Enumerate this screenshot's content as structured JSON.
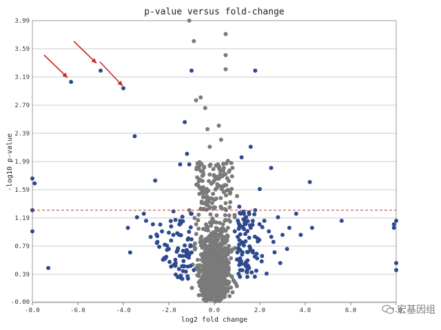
{
  "chart_data": {
    "type": "scatter",
    "title": "p-value versus fold-change",
    "xlabel": "log2 fold change",
    "ylabel": "-log10 p-value",
    "xlim": [
      -8,
      8
    ],
    "ylim": [
      -0.01,
      3.99
    ],
    "x_ticks": [
      "-8.0",
      "-6.0",
      "-4.0",
      "-2.0",
      "0.0",
      "2.0",
      "4.0",
      "6.0",
      "8.0"
    ],
    "y_ticks": [
      "-0.00",
      "0.39",
      "0.79",
      "1.19",
      "1.59",
      "1.99",
      "2.39",
      "2.79",
      "3.19",
      "3.59",
      "3.99"
    ],
    "grid": "horizontal",
    "threshold_line": {
      "y": 1.3,
      "style": "dashed",
      "color": "#c03030"
    },
    "colors": {
      "significant": "#2e4a8f",
      "not_significant": "#7a7a7a",
      "arrows": "#cc2222"
    },
    "series": [
      {
        "color": "#2e4a8f",
        "points": [
          [
            -6.3,
            3.12
          ],
          [
            -5.0,
            3.28
          ],
          [
            -4.0,
            3.03
          ],
          [
            -1.0,
            3.28
          ],
          [
            -3.5,
            2.35
          ],
          [
            -1.3,
            2.55
          ],
          [
            1.8,
            3.28
          ],
          [
            -8.0,
            1.75
          ],
          [
            -7.9,
            1.68
          ],
          [
            -8.0,
            1.3
          ],
          [
            -8.0,
            1.0
          ],
          [
            -7.3,
            0.48
          ],
          [
            -3.8,
            1.05
          ],
          [
            -3.7,
            0.7
          ],
          [
            -3.4,
            1.2
          ],
          [
            -3.1,
            1.25
          ],
          [
            -3.0,
            1.15
          ],
          [
            -2.8,
            0.92
          ],
          [
            -2.7,
            1.1
          ],
          [
            -2.6,
            1.72
          ],
          [
            -2.5,
            0.85
          ],
          [
            -2.3,
            1.0
          ],
          [
            -2.2,
            0.62
          ],
          [
            -2.0,
            0.75
          ],
          [
            -1.9,
            0.5
          ],
          [
            -1.8,
            0.95
          ],
          [
            -1.7,
            0.55
          ],
          [
            -1.6,
            0.35
          ],
          [
            -1.5,
            1.15
          ],
          [
            -1.4,
            0.65
          ],
          [
            -1.3,
            0.8
          ],
          [
            -1.2,
            2.1
          ],
          [
            -1.1,
            1.95
          ],
          [
            -1.0,
            0.7
          ],
          [
            -1.0,
            1.25
          ],
          [
            -0.9,
            0.45
          ],
          [
            0.9,
            1.0
          ],
          [
            1.0,
            0.6
          ],
          [
            1.1,
            1.35
          ],
          [
            1.2,
            2.05
          ],
          [
            1.3,
            0.8
          ],
          [
            1.4,
            1.2
          ],
          [
            1.5,
            0.5
          ],
          [
            1.6,
            1.05
          ],
          [
            1.7,
            0.7
          ],
          [
            1.8,
            1.3
          ],
          [
            1.9,
            0.9
          ],
          [
            2.0,
            1.6
          ],
          [
            2.1,
            0.65
          ],
          [
            2.2,
            1.15
          ],
          [
            2.3,
            0.4
          ],
          [
            2.4,
            1.0
          ],
          [
            2.5,
            1.9
          ],
          [
            2.6,
            0.85
          ],
          [
            2.8,
            1.2
          ],
          [
            2.9,
            0.55
          ],
          [
            3.0,
            0.95
          ],
          [
            3.2,
            0.75
          ],
          [
            3.3,
            1.05
          ],
          [
            3.6,
            1.25
          ],
          [
            3.8,
            0.95
          ],
          [
            4.2,
            1.7
          ],
          [
            4.3,
            1.05
          ],
          [
            5.6,
            1.15
          ],
          [
            7.9,
            1.1
          ],
          [
            7.9,
            1.05
          ],
          [
            8.0,
            1.15
          ],
          [
            8.0,
            0.55
          ],
          [
            8.0,
            0.45
          ],
          [
            1.6,
            2.2
          ],
          [
            -1.5,
            1.95
          ]
        ]
      },
      {
        "color": "#7a7a7a",
        "points": [
          [
            -0.9,
            3.7
          ],
          [
            0.5,
            3.8
          ],
          [
            0.5,
            3.5
          ],
          [
            0.5,
            3.3
          ],
          [
            -1.1,
            3.99
          ],
          [
            -0.8,
            2.86
          ],
          [
            -0.6,
            2.9
          ],
          [
            -0.4,
            2.75
          ],
          [
            0.2,
            2.5
          ],
          [
            -0.3,
            2.45
          ],
          [
            0.3,
            2.3
          ],
          [
            -0.2,
            2.2
          ],
          [
            0.6,
            2.0
          ],
          [
            0.8,
            1.9
          ],
          [
            -0.5,
            1.85
          ],
          [
            0.4,
            1.8
          ],
          [
            -0.6,
            1.6
          ],
          [
            0.7,
            1.55
          ],
          [
            -0.3,
            1.45
          ],
          [
            0.5,
            1.4
          ],
          [
            1.0,
            1.5
          ],
          [
            -1.1,
            1.3
          ],
          [
            0.9,
            1.2
          ],
          [
            -0.8,
            1.1
          ],
          [
            0.6,
            1.05
          ]
        ]
      }
    ]
  },
  "annotations": {
    "arrows": 3
  },
  "watermark": {
    "text": "宏基因组"
  }
}
